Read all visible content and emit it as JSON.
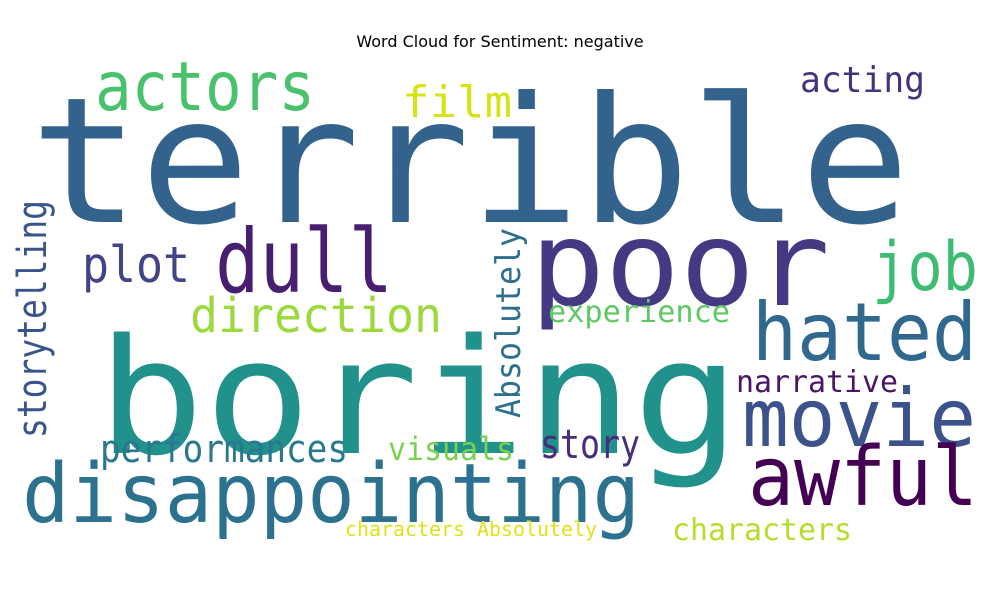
{
  "chart_data": {
    "type": "wordcloud",
    "title": "Word Cloud for Sentiment: negative",
    "words": [
      {
        "text": "terrible",
        "color": "#33638d"
      },
      {
        "text": "boring",
        "color": "#21918c"
      },
      {
        "text": "poor",
        "color": "#443983"
      },
      {
        "text": "disappointing",
        "color": "#2c728e"
      },
      {
        "text": "dull",
        "color": "#481f70"
      },
      {
        "text": "actors",
        "color": "#4ac16d"
      },
      {
        "text": "hated",
        "color": "#31688e"
      },
      {
        "text": "movie",
        "color": "#3b528b"
      },
      {
        "text": "awful",
        "color": "#440154"
      },
      {
        "text": "job",
        "color": "#3fbc73"
      },
      {
        "text": "direction",
        "color": "#9bd93c"
      },
      {
        "text": "plot",
        "color": "#414487"
      },
      {
        "text": "film",
        "color": "#d8e219"
      },
      {
        "text": "acting",
        "color": "#46337e"
      },
      {
        "text": "storytelling",
        "color": "#3a548c"
      },
      {
        "text": "Absolutely",
        "color": "#2d708e"
      },
      {
        "text": "experience",
        "color": "#5ec962"
      },
      {
        "text": "narrative",
        "color": "#481567"
      },
      {
        "text": "performances",
        "color": "#2a788e"
      },
      {
        "text": "visuals",
        "color": "#7ad151"
      },
      {
        "text": "story",
        "color": "#472d7b"
      },
      {
        "text": "characters",
        "color": "#b5de2b"
      },
      {
        "text": "characters Absolutely",
        "color": "#dde318"
      }
    ]
  }
}
